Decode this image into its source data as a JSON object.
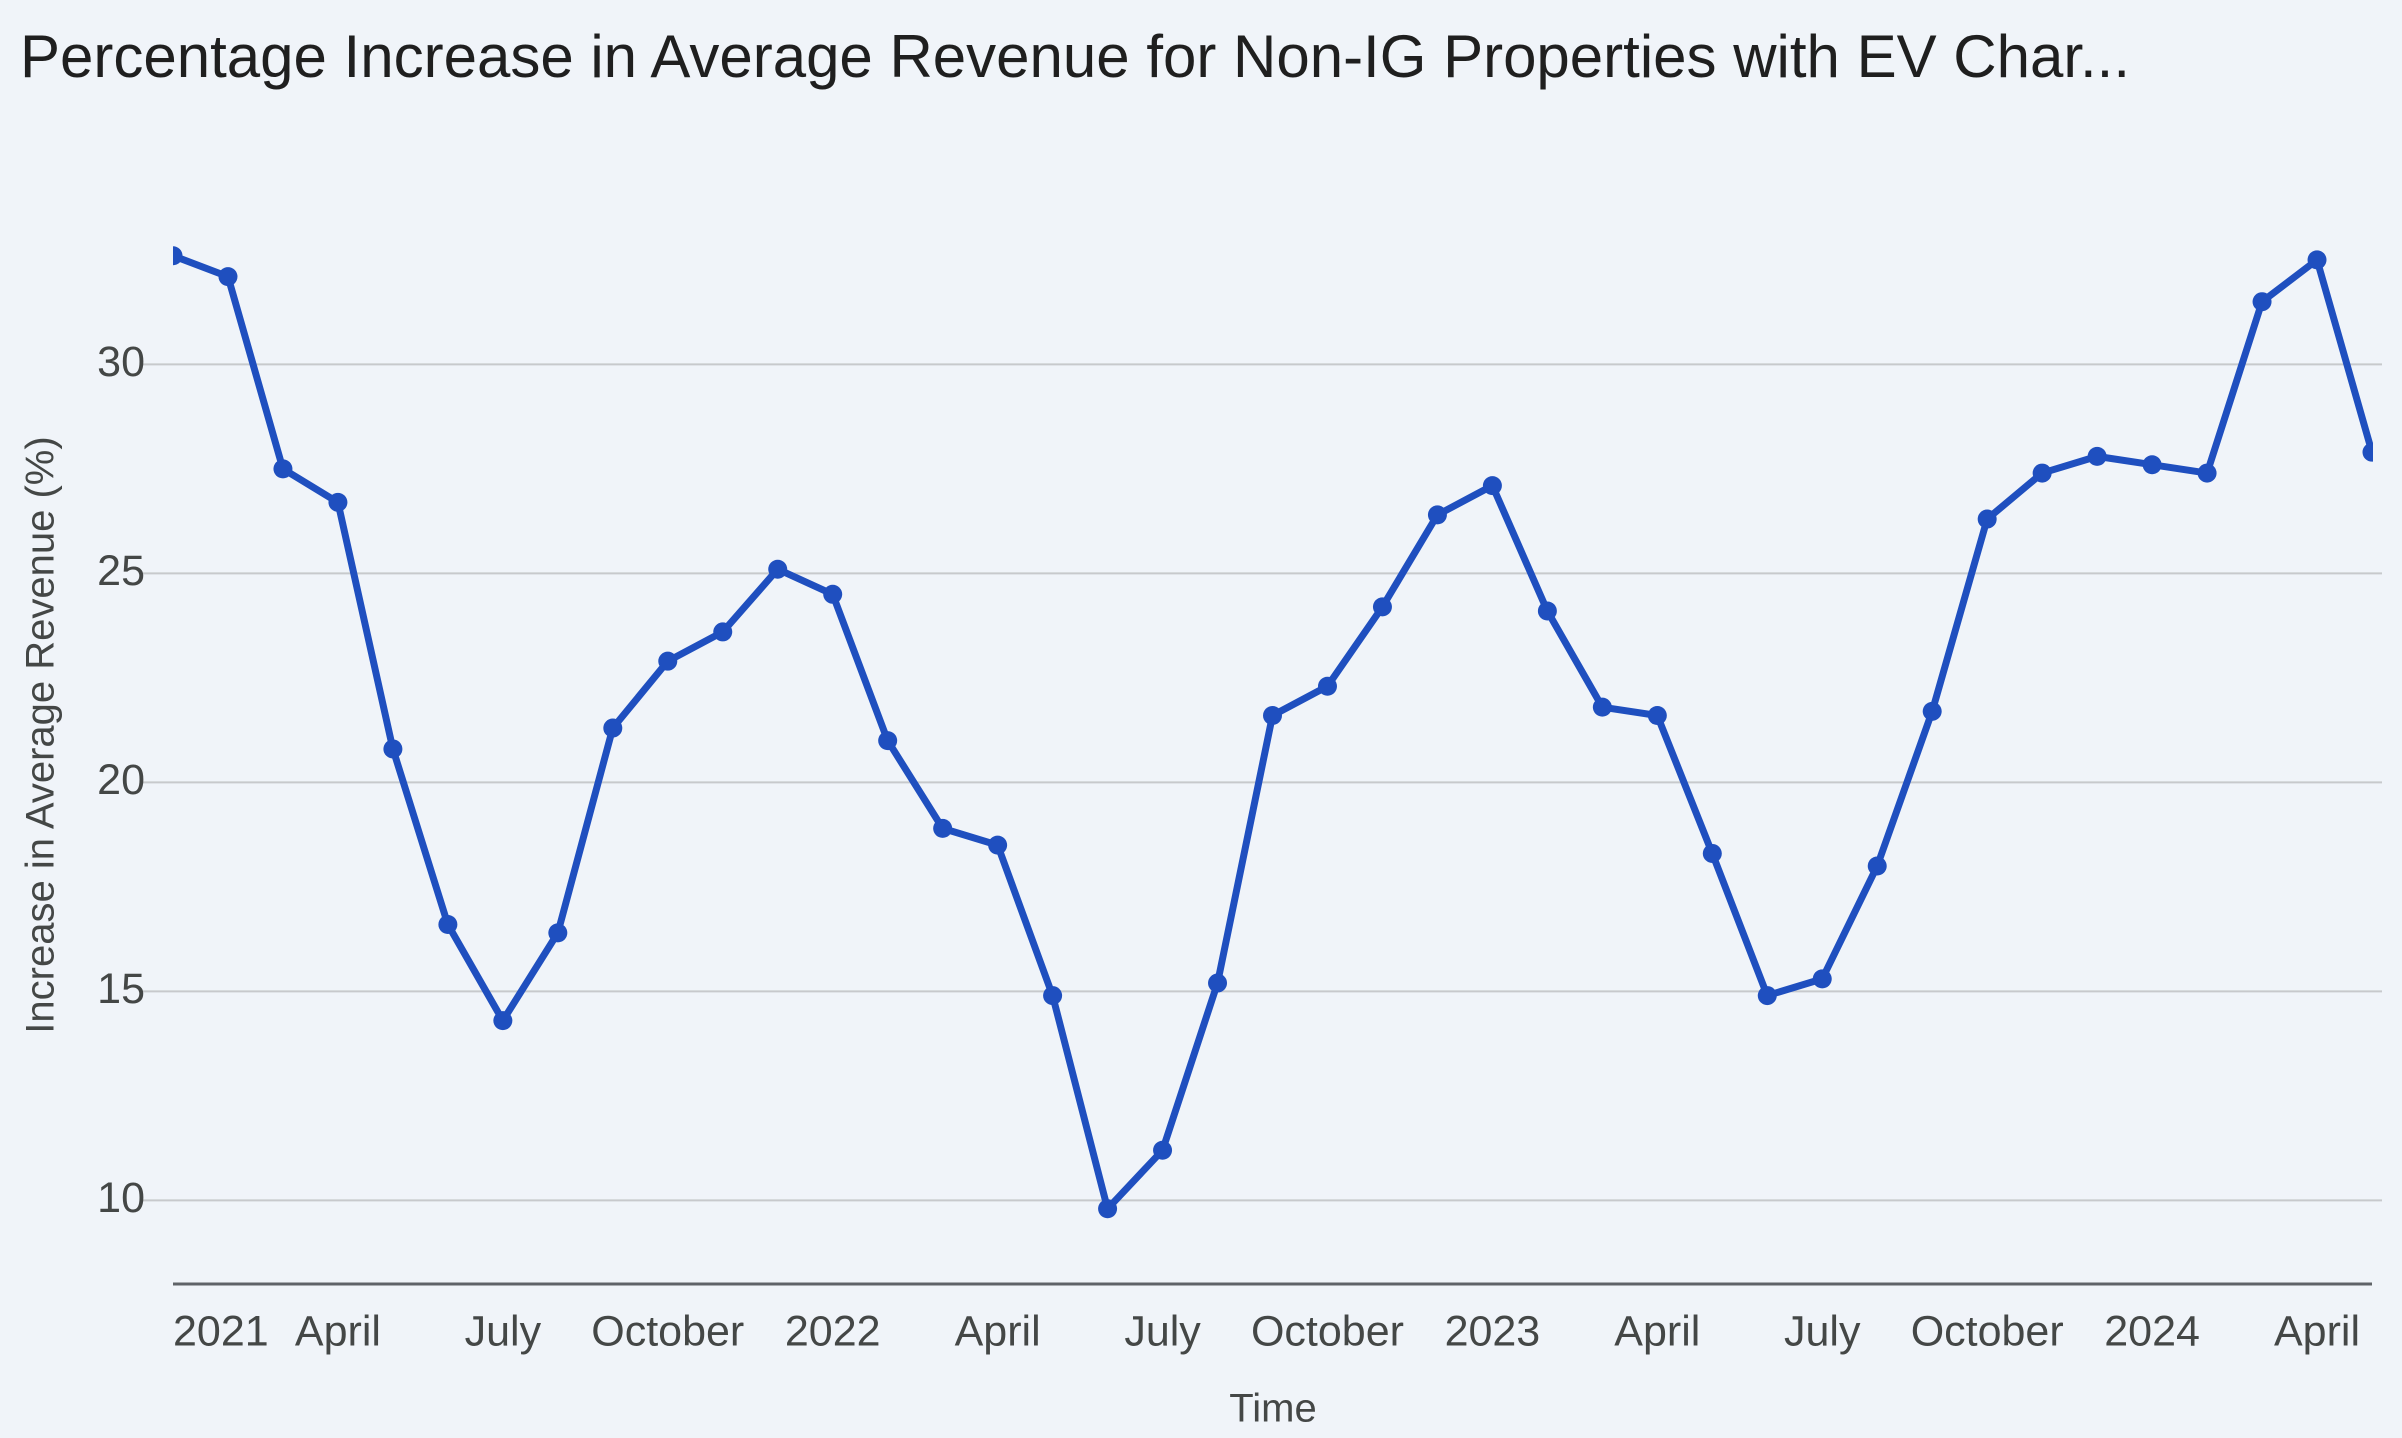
{
  "chart_data": {
    "type": "line",
    "title": "Percentage Increase in Average Revenue for Non-IG Properties with EV Char...",
    "x_label": "Time",
    "y_label": "Increase in Average Revenue (%)",
    "categories": [
      "2021",
      null,
      null,
      "April",
      null,
      null,
      "July",
      null,
      null,
      "October",
      null,
      null,
      "2022",
      null,
      null,
      "April",
      null,
      null,
      "July",
      null,
      null,
      "October",
      null,
      null,
      "2023",
      null,
      null,
      "April",
      null,
      null,
      "July",
      null,
      null,
      "October",
      null,
      null,
      "2024",
      null,
      null,
      "April",
      null
    ],
    "values": [
      32.6,
      32.1,
      27.5,
      26.7,
      20.8,
      16.6,
      14.3,
      16.4,
      21.3,
      22.9,
      23.6,
      25.1,
      24.5,
      21.0,
      18.9,
      18.5,
      14.9,
      9.8,
      11.2,
      15.2,
      21.6,
      22.3,
      24.2,
      26.4,
      27.1,
      24.1,
      21.8,
      21.6,
      18.3,
      14.9,
      15.3,
      18.0,
      21.7,
      26.3,
      27.4,
      27.8,
      27.6,
      27.4,
      31.5,
      32.5,
      27.9
    ],
    "color": "#1f4fbf",
    "ylim": [
      8,
      33
    ],
    "yticks": [
      10,
      15,
      20,
      25,
      30
    ],
    "grid": true
  }
}
